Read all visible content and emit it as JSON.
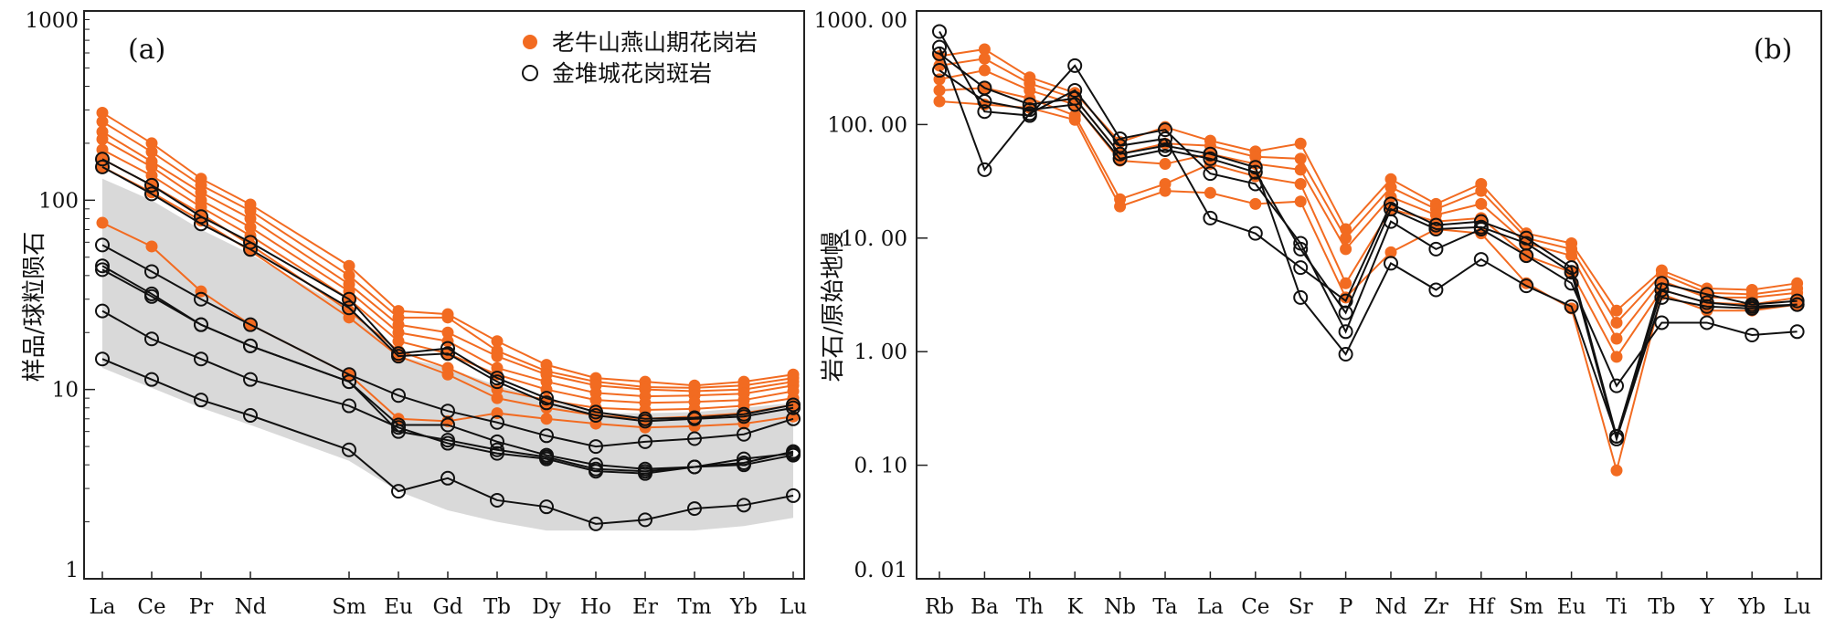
{
  "colors": {
    "orange": "#f26b21",
    "black": "#111111",
    "shade": "#d9d9d9",
    "axis": "#222222"
  },
  "chart_data": [
    {
      "type": "line",
      "panel_label": "(a)",
      "title": "",
      "xlabel": "",
      "ylabel": "样品/球粒陨石",
      "yscale": "log",
      "ylim": [
        1,
        1000
      ],
      "yticks": [
        1,
        10,
        100,
        1000
      ],
      "ytick_labels": [
        "1",
        "10",
        "100",
        "1000"
      ],
      "categories": [
        "La",
        "Ce",
        "Pr",
        "Nd",
        "Sm",
        "Eu",
        "Gd",
        "Tb",
        "Dy",
        "Ho",
        "Er",
        "Tm",
        "Yb",
        "Lu"
      ],
      "category_positions": [
        0,
        1,
        2,
        3,
        5,
        6,
        7,
        8,
        9,
        10,
        11,
        12,
        13,
        14
      ],
      "legend": [
        {
          "label": "老牛山燕山期花岗岩",
          "marker": "filled-circle",
          "color": "orange"
        },
        {
          "label": "金堆城花岗斑岩",
          "marker": "open-circle",
          "color": "black"
        }
      ],
      "shaded_range": {
        "upper": [
          130,
          100,
          70,
          52,
          26,
          15,
          13,
          10.5,
          8.8,
          7.5,
          7.5,
          7.6,
          8,
          8.5
        ],
        "lower": [
          13,
          10.2,
          8,
          6.5,
          4.2,
          2.9,
          2.3,
          2.0,
          1.8,
          1.8,
          1.8,
          1.8,
          1.9,
          2.1
        ]
      },
      "series": [
        {
          "group": "orange",
          "values": [
            290,
            200,
            130,
            95,
            45,
            26,
            25,
            18,
            13.5,
            11.5,
            11,
            10.5,
            11,
            12
          ]
        },
        {
          "group": "orange",
          "values": [
            260,
            180,
            120,
            88,
            40,
            24,
            24,
            16,
            12.5,
            11,
            10.3,
            10.2,
            10.5,
            11.5
          ]
        },
        {
          "group": "orange",
          "values": [
            230,
            160,
            110,
            80,
            36,
            22,
            20,
            15,
            12,
            10.5,
            10,
            9.8,
            10,
            11
          ]
        },
        {
          "group": "orange",
          "values": [
            210,
            150,
            100,
            72,
            33,
            20,
            18,
            13,
            11,
            9.6,
            9.2,
            9.3,
            9.5,
            10.5
          ]
        },
        {
          "group": "orange",
          "values": [
            185,
            135,
            92,
            65,
            30,
            18,
            15.5,
            12,
            10,
            8.8,
            8.5,
            8.6,
            8.8,
            9.8
          ]
        },
        {
          "group": "orange",
          "values": [
            165,
            120,
            85,
            58,
            26,
            16,
            13,
            10,
            8.8,
            8,
            7.8,
            7.9,
            8.2,
            9
          ]
        },
        {
          "group": "orange",
          "values": [
            150,
            110,
            78,
            54,
            24,
            15,
            12,
            9,
            8,
            7.3,
            7,
            7.2,
            7.5,
            8.3
          ]
        },
        {
          "group": "orange",
          "values": [
            76,
            57,
            33,
            22,
            12,
            7,
            6.8,
            7.5,
            7,
            6.6,
            6.3,
            6.4,
            6.6,
            7.2
          ]
        },
        {
          "group": "black",
          "values": [
            165,
            120,
            82,
            60,
            30,
            15.5,
            16.5,
            11.5,
            9,
            7.6,
            7,
            7.1,
            7.4,
            8.3
          ]
        },
        {
          "group": "black",
          "values": [
            150,
            108,
            75,
            55,
            27,
            15,
            15.5,
            11,
            8.5,
            7.3,
            6.8,
            7,
            7.2,
            8
          ]
        },
        {
          "group": "black",
          "values": [
            58,
            42,
            30,
            22,
            12,
            9.3,
            7.7,
            6.7,
            5.7,
            5,
            5.3,
            5.5,
            5.8,
            7
          ]
        },
        {
          "group": "black",
          "values": [
            45,
            32,
            22,
            17,
            11,
            6.5,
            6.5,
            5.3,
            4.5,
            4,
            3.8,
            3.9,
            4.1,
            4.7
          ]
        },
        {
          "group": "black",
          "values": [
            43,
            31,
            22,
            17,
            11,
            6,
            5.4,
            4.8,
            4.4,
            3.8,
            3.7,
            3.9,
            4,
            4.5
          ]
        },
        {
          "group": "black",
          "values": [
            26,
            18.5,
            14.5,
            11.3,
            8.2,
            6.3,
            5.2,
            4.6,
            4.3,
            3.7,
            3.6,
            3.9,
            4.3,
            4.6
          ]
        },
        {
          "group": "black",
          "values": [
            14.5,
            11.3,
            8.8,
            7.3,
            4.8,
            2.9,
            3.4,
            2.6,
            2.4,
            1.95,
            2.05,
            2.35,
            2.45,
            2.75
          ]
        }
      ]
    },
    {
      "type": "line",
      "panel_label": "(b)",
      "title": "",
      "xlabel": "",
      "ylabel": "岩石/原始地幔",
      "yscale": "log",
      "ylim": [
        0.01,
        1000
      ],
      "yticks": [
        0.01,
        0.1,
        1,
        10,
        100,
        1000
      ],
      "ytick_labels": [
        "0. 01",
        "0. 10",
        "1. 00",
        "10. 00",
        "100. 00",
        "1000. 00"
      ],
      "categories": [
        "Rb",
        "Ba",
        "Th",
        "K",
        "Nb",
        "Ta",
        "La",
        "Ce",
        "Sr",
        "P",
        "Nd",
        "Zr",
        "Hf",
        "Sm",
        "Eu",
        "Ti",
        "Tb",
        "Y",
        "Yb",
        "Lu"
      ],
      "category_positions": [
        0,
        1,
        2,
        3,
        4,
        5,
        6,
        7,
        8,
        9,
        10,
        11,
        12,
        13,
        14,
        15,
        16,
        17,
        18,
        19
      ],
      "series": [
        {
          "group": "orange",
          "values": [
            400,
            460,
            260,
            190,
            70,
            95,
            72,
            58,
            68,
            12,
            33,
            20,
            30,
            11,
            9,
            2.3,
            5.2,
            3.6,
            3.5,
            4
          ]
        },
        {
          "group": "orange",
          "values": [
            330,
            380,
            230,
            170,
            55,
            68,
            65,
            52,
            50,
            10,
            28,
            18,
            26,
            10,
            8,
            1.8,
            4.8,
            3.3,
            3.2,
            3.6
          ]
        },
        {
          "group": "orange",
          "values": [
            250,
            300,
            200,
            150,
            48,
            45,
            55,
            45,
            40,
            8,
            23,
            16,
            20,
            9,
            7,
            1.3,
            4.2,
            3,
            3,
            3.3
          ]
        },
        {
          "group": "orange",
          "values": [
            200,
            210,
            170,
            120,
            22,
            30,
            45,
            35,
            30,
            4,
            18,
            14,
            15,
            7,
            5,
            0.9,
            3.5,
            2.7,
            2.6,
            3
          ]
        },
        {
          "group": "orange",
          "values": [
            160,
            150,
            140,
            110,
            19,
            26,
            25,
            20,
            21,
            3,
            7.5,
            12,
            11,
            4,
            2.4,
            0.09,
            3.2,
            2.3,
            2.3,
            2.6
          ]
        },
        {
          "group": "black",
          "values": [
            660,
            130,
            120,
            330,
            75,
            90,
            37,
            30,
            9,
            1.5,
            14,
            8,
            12,
            7,
            4,
            0.5,
            1.8,
            1.8,
            1.4,
            1.5
          ]
        },
        {
          "group": "black",
          "values": [
            480,
            40,
            125,
            200,
            65,
            75,
            15,
            11,
            5.5,
            2.8,
            20,
            13,
            14,
            10,
            5.5,
            0.18,
            4,
            3.2,
            2.6,
            2.8
          ]
        },
        {
          "group": "black",
          "values": [
            420,
            210,
            150,
            170,
            55,
            65,
            55,
            42,
            3,
            0.95,
            6,
            3.5,
            6.5,
            3.8,
            2.5,
            0.18,
            3.5,
            2.7,
            2.5,
            2.6
          ]
        },
        {
          "group": "black",
          "values": [
            300,
            160,
            135,
            150,
            50,
            60,
            50,
            38,
            8,
            2.2,
            18,
            12,
            12.5,
            9,
            5,
            0.17,
            3,
            2.5,
            2.4,
            2.6
          ]
        }
      ]
    }
  ]
}
